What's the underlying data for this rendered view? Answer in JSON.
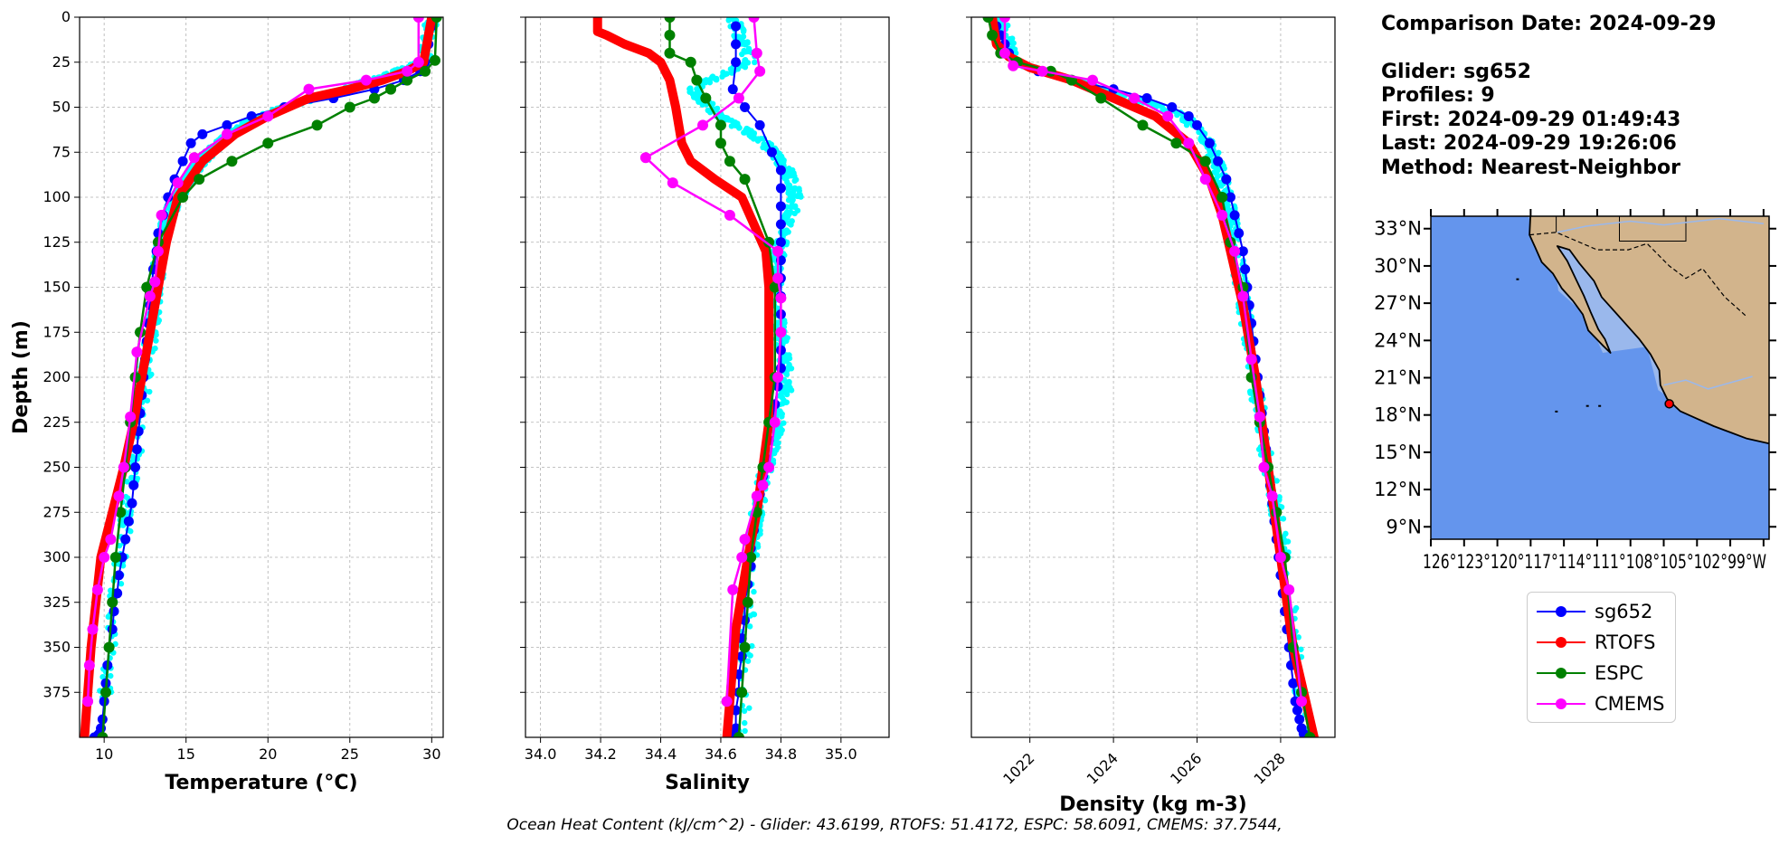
{
  "info": {
    "comparison_date": "Comparison Date: 2024-09-29",
    "glider": "Glider: sg652",
    "profiles": "Profiles: 9",
    "first": "First: 2024-09-29 01:49:43",
    "last": "Last: 2024-09-29 19:26:06",
    "method": "Method: Nearest-Neighbor"
  },
  "footer": "Ocean Heat Content (kJ/cm^2) - Glider: 43.6199,  RTOFS: 51.4172,  ESPC: 58.6091,  CMEMS: 37.7544,",
  "legend": [
    {
      "label": "sg652",
      "color": "#0000ff"
    },
    {
      "label": "RTOFS",
      "color": "#ff0000"
    },
    {
      "label": "ESPC",
      "color": "#008000"
    },
    {
      "label": "CMEMS",
      "color": "#ff00ff"
    }
  ],
  "colors": {
    "raw_glider": "#00ffff",
    "ocean": "#6495ed",
    "land": "#d2b48c",
    "shelf": "#9ab8ec"
  },
  "chart_data": [
    {
      "type": "line",
      "xlabel": "Temperature (°C)",
      "ylabel": "Depth (m)",
      "xlim": [
        8.5,
        30.7
      ],
      "ylim": [
        400,
        0
      ],
      "xticks": [
        10,
        15,
        20,
        25,
        30
      ],
      "yticks": [
        0,
        25,
        50,
        75,
        100,
        125,
        150,
        175,
        200,
        225,
        250,
        275,
        300,
        325,
        350,
        375
      ],
      "grid": true,
      "raw_glider_x": [
        30,
        29.5,
        27,
        24,
        21,
        19,
        17.5,
        16.5,
        15.5,
        14.8,
        14.2,
        13.8,
        13.5,
        13.2,
        12.9,
        12.5,
        11.8,
        11,
        10
      ],
      "raw_glider_depth": [
        0,
        25,
        33,
        42,
        50,
        58,
        66,
        75,
        85,
        95,
        105,
        115,
        125,
        150,
        175,
        200,
        250,
        300,
        380
      ],
      "series": [
        {
          "name": "sg652",
          "x": [
            30,
            29.8,
            29.6,
            29.3,
            28.3,
            26.5,
            24,
            21,
            19,
            17.5,
            16,
            15.3,
            14.8,
            14.3,
            13.9,
            13.6,
            13.3,
            13.2,
            13,
            12.9,
            12.8,
            12.7,
            12.6,
            12.5,
            12.4,
            12.3,
            12.2,
            12.1,
            12,
            11.9,
            11.8,
            11.7,
            11.5,
            11.3,
            11.1,
            10.9,
            10.8,
            10.6,
            10.5,
            10.3,
            10.2,
            10.1,
            10,
            9.9,
            9.8,
            9.7,
            9.6,
            9.5,
            9.4
          ],
          "depth": [
            5,
            15,
            25,
            30,
            35,
            40,
            45,
            50,
            55,
            60,
            65,
            70,
            80,
            90,
            100,
            110,
            120,
            130,
            140,
            150,
            160,
            170,
            180,
            190,
            200,
            210,
            220,
            230,
            240,
            250,
            260,
            270,
            280,
            290,
            300,
            310,
            320,
            330,
            340,
            350,
            360,
            370,
            380,
            390,
            395,
            398,
            399,
            400,
            400
          ]
        },
        {
          "name": "RTOFS",
          "x": [
            30,
            29.5,
            28.5,
            27,
            25,
            22.5,
            20,
            18,
            16,
            14.5,
            13.8,
            13.3,
            12.8,
            12.3,
            11.8,
            11.2,
            10.5,
            9.8,
            9.2,
            8.8
          ],
          "depth": [
            0,
            25,
            30,
            35,
            40,
            45,
            55,
            65,
            80,
            100,
            125,
            150,
            175,
            200,
            225,
            250,
            275,
            300,
            350,
            400
          ]
        },
        {
          "name": "ESPC",
          "x": [
            30.3,
            30.2,
            29.6,
            28.5,
            27.5,
            26.5,
            25,
            23,
            20,
            17.8,
            15.8,
            14.8,
            13.3,
            12.6,
            12.2,
            11.9,
            11.6,
            11.3,
            11,
            10.7,
            10.5,
            10.3,
            10.1,
            9.9
          ],
          "depth": [
            0,
            24,
            30,
            35,
            40,
            45,
            50,
            60,
            70,
            80,
            90,
            100,
            125,
            150,
            175,
            200,
            225,
            250,
            275,
            300,
            325,
            350,
            375,
            400
          ]
        },
        {
          "name": "CMEMS",
          "x": [
            29.2,
            29.2,
            28.5,
            26,
            22.5,
            20,
            17.5,
            15.5,
            14.5,
            13.5,
            13.3,
            13.1,
            12.8,
            12.0,
            11.6,
            11.2,
            10.9,
            10.4,
            10.0,
            9.6,
            9.3,
            9.1,
            9.0
          ],
          "depth": [
            0,
            25,
            30,
            35,
            40,
            55,
            65,
            78,
            92,
            110,
            130,
            147,
            155,
            186,
            222,
            250,
            266,
            290,
            300,
            318,
            340,
            360,
            380
          ]
        }
      ]
    },
    {
      "type": "line",
      "xlabel": "Salinity",
      "ylabel": "",
      "xlim": [
        33.95,
        35.16
      ],
      "ylim": [
        400,
        0
      ],
      "xticks": [
        34.0,
        34.2,
        34.4,
        34.6,
        34.8,
        35.0
      ],
      "grid": true,
      "raw_glider_x": [
        34.64,
        34.7,
        34.5,
        34.6,
        34.75,
        34.82,
        34.85,
        34.8,
        34.78,
        34.8,
        34.82,
        34.8,
        34.75,
        34.72,
        34.7,
        34.67
      ],
      "raw_glider_depth": [
        0,
        25,
        40,
        55,
        70,
        85,
        100,
        125,
        150,
        175,
        200,
        225,
        250,
        275,
        300,
        400
      ],
      "series": [
        {
          "name": "sg652",
          "x": [
            34.65,
            34.65,
            34.65,
            34.64,
            34.68,
            34.73,
            34.77,
            34.8,
            34.8,
            34.8,
            34.8,
            34.8,
            34.8,
            34.8,
            34.8,
            34.8,
            34.8,
            34.8,
            34.8,
            34.79,
            34.78,
            34.77,
            34.76,
            34.75,
            34.74,
            34.73,
            34.72,
            34.71,
            34.7,
            34.7,
            34.69,
            34.68,
            34.68,
            34.67,
            34.67,
            34.66,
            34.66,
            34.65,
            34.65,
            34.65,
            34.64
          ],
          "depth": [
            5,
            15,
            25,
            40,
            50,
            60,
            75,
            85,
            95,
            105,
            115,
            125,
            135,
            145,
            155,
            165,
            175,
            185,
            195,
            205,
            215,
            225,
            235,
            245,
            255,
            265,
            275,
            285,
            295,
            305,
            315,
            325,
            335,
            345,
            355,
            365,
            375,
            385,
            395,
            398,
            400
          ]
        },
        {
          "name": "RTOFS",
          "x": [
            34.19,
            34.19,
            34.22,
            34.28,
            34.36,
            34.4,
            34.43,
            34.45,
            34.47,
            34.5,
            34.58,
            34.67,
            34.75,
            34.76,
            34.76,
            34.76,
            34.76,
            34.74,
            34.72,
            34.69,
            34.67,
            34.65,
            34.64,
            34.63,
            34.62
          ],
          "depth": [
            0,
            8,
            10,
            15,
            20,
            25,
            35,
            50,
            70,
            80,
            90,
            100,
            130,
            150,
            175,
            200,
            225,
            250,
            275,
            300,
            320,
            340,
            360,
            380,
            400
          ]
        },
        {
          "name": "ESPC",
          "x": [
            34.43,
            34.43,
            34.43,
            34.5,
            34.52,
            34.55,
            34.6,
            34.6,
            34.63,
            34.68,
            34.76,
            34.78,
            34.78,
            34.76,
            34.74,
            34.72,
            34.7,
            34.69,
            34.68,
            34.67,
            34.66
          ],
          "depth": [
            0,
            10,
            20,
            25,
            35,
            45,
            60,
            70,
            80,
            90,
            125,
            150,
            200,
            225,
            250,
            275,
            300,
            325,
            350,
            375,
            400
          ]
        },
        {
          "name": "CMEMS",
          "x": [
            34.71,
            34.72,
            34.73,
            34.66,
            34.54,
            34.35,
            34.44,
            34.63,
            34.79,
            34.79,
            34.8,
            34.8,
            34.79,
            34.78,
            34.76,
            34.74,
            34.72,
            34.68,
            34.67,
            34.64,
            34.62
          ],
          "depth": [
            0,
            20,
            30,
            45,
            60,
            78,
            92,
            110,
            130,
            145,
            156,
            175,
            200,
            225,
            250,
            260,
            266,
            290,
            300,
            318,
            380
          ]
        }
      ]
    },
    {
      "type": "line",
      "xlabel": "Density (kg m-3)",
      "ylabel": "",
      "xlim": [
        1020.6,
        1029.3
      ],
      "ylim": [
        400,
        0
      ],
      "xticks": [
        1022,
        1024,
        1026,
        1028
      ],
      "grid": true,
      "raw_glider_x": [
        1021.3,
        1021.6,
        1023,
        1024.5,
        1025.7,
        1026.3,
        1026.6,
        1026.8,
        1027,
        1027.3,
        1027.7,
        1028.1,
        1028.6
      ],
      "raw_glider_depth": [
        0,
        25,
        35,
        45,
        55,
        70,
        90,
        110,
        140,
        190,
        250,
        300,
        400
      ],
      "series": [
        {
          "name": "sg652",
          "x": [
            1021.2,
            1021.3,
            1021.4,
            1021.5,
            1021.7,
            1022.2,
            1023,
            1024,
            1024.8,
            1025.4,
            1025.8,
            1026,
            1026.3,
            1026.5,
            1026.7,
            1026.8,
            1026.9,
            1027,
            1027.1,
            1027.15,
            1027.2,
            1027.25,
            1027.3,
            1027.35,
            1027.4,
            1027.45,
            1027.5,
            1027.55,
            1027.6,
            1027.65,
            1027.7,
            1027.75,
            1027.8,
            1027.85,
            1027.9,
            1027.95,
            1028,
            1028.05,
            1028.1,
            1028.15,
            1028.2,
            1028.25,
            1028.3,
            1028.35,
            1028.4,
            1028.45,
            1028.5,
            1028.55,
            1028.6
          ],
          "depth": [
            5,
            10,
            15,
            20,
            25,
            30,
            35,
            40,
            45,
            50,
            55,
            60,
            70,
            80,
            90,
            100,
            110,
            120,
            130,
            140,
            150,
            160,
            170,
            180,
            190,
            200,
            210,
            220,
            230,
            240,
            250,
            260,
            270,
            280,
            290,
            300,
            310,
            320,
            330,
            340,
            350,
            360,
            370,
            380,
            385,
            390,
            395,
            398,
            400
          ]
        },
        {
          "name": "RTOFS",
          "x": [
            1021.1,
            1021.2,
            1021.5,
            1022,
            1023,
            1024,
            1025,
            1025.8,
            1026.3,
            1026.6,
            1026.8,
            1027.1,
            1027.4,
            1027.7,
            1028,
            1028.3,
            1028.6,
            1028.8
          ],
          "depth": [
            0,
            15,
            22,
            28,
            35,
            45,
            55,
            70,
            90,
            110,
            130,
            160,
            200,
            250,
            300,
            350,
            380,
            400
          ]
        },
        {
          "name": "ESPC",
          "x": [
            1021.0,
            1021.1,
            1021.3,
            1021.7,
            1022.5,
            1023,
            1023.7,
            1024.7,
            1025.5,
            1026.2,
            1026.6,
            1026.8,
            1027.1,
            1027.3,
            1027.5,
            1027.7,
            1027.9,
            1028.1,
            1028.3,
            1028.5,
            1028.7
          ],
          "depth": [
            0,
            10,
            20,
            25,
            30,
            35,
            45,
            60,
            70,
            80,
            100,
            125,
            150,
            200,
            225,
            250,
            275,
            300,
            350,
            375,
            400
          ]
        },
        {
          "name": "CMEMS",
          "x": [
            1021.4,
            1021.4,
            1021.6,
            1022.3,
            1023.5,
            1024.5,
            1025.3,
            1025.8,
            1026.2,
            1026.6,
            1026.9,
            1027.1,
            1027.3,
            1027.5,
            1027.6,
            1027.8,
            1028.0,
            1028.2,
            1028.5
          ],
          "depth": [
            0,
            20,
            27,
            30,
            35,
            45,
            55,
            70,
            90,
            110,
            130,
            155,
            190,
            222,
            250,
            266,
            300,
            318,
            380
          ]
        }
      ]
    }
  ],
  "map": {
    "lat_ticks": [
      "33°N",
      "30°N",
      "27°N",
      "24°N",
      "21°N",
      "18°N",
      "15°N",
      "12°N",
      "9°N"
    ],
    "lon_tick_text": "126°123°120°117°114°111°108°105°102°99°W",
    "marker_lat": 18.9,
    "marker_lon": -104.5,
    "extent": {
      "lon": [
        -126,
        -95.5
      ],
      "lat": [
        8,
        34
      ]
    }
  }
}
